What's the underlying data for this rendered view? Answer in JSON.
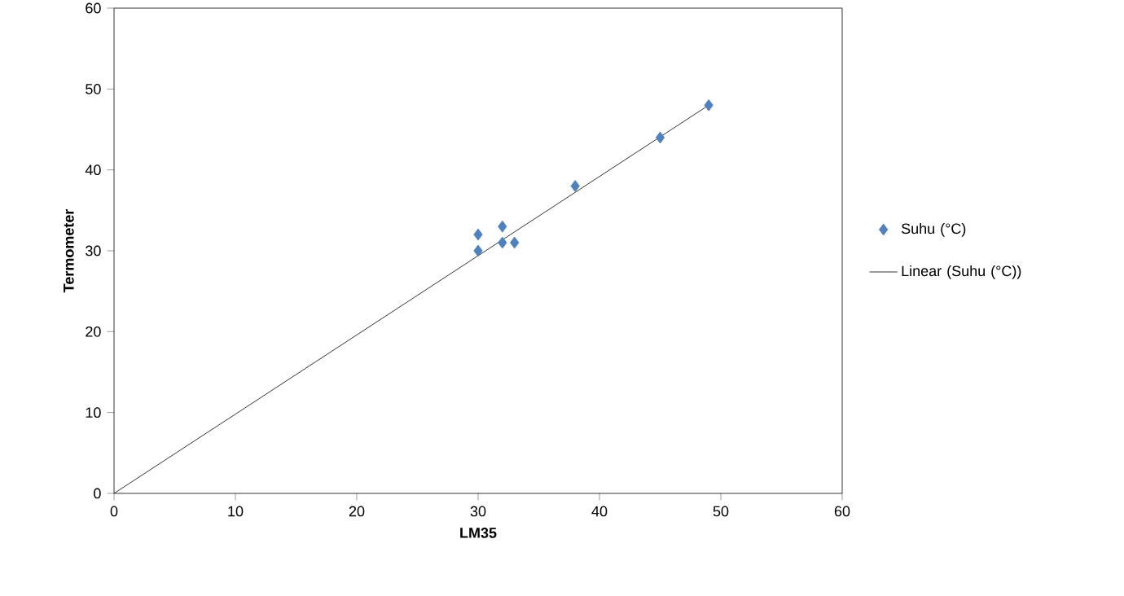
{
  "chart_data": {
    "type": "scatter",
    "xlabel": "LM35",
    "ylabel": "Termometer",
    "xlim": [
      0,
      60
    ],
    "ylim": [
      0,
      60
    ],
    "xticks": [
      0,
      10,
      20,
      30,
      40,
      50,
      60
    ],
    "yticks": [
      0,
      10,
      20,
      30,
      40,
      50,
      60
    ],
    "grid": false,
    "legend": "right",
    "marker": "diamond",
    "series": [
      {
        "name": "Suhu (°C)",
        "color": "#4f81bd",
        "x": [
          49,
          45,
          38,
          30,
          30,
          32,
          33,
          32
        ],
        "values": [
          48,
          44,
          38,
          32,
          30,
          33,
          31,
          31
        ]
      },
      {
        "name": "Linear (Suhu (°C))",
        "type": "line",
        "color": "#000000",
        "marker": "none",
        "line_style": "solid",
        "x": [
          0,
          49
        ],
        "values": [
          0,
          48
        ]
      }
    ]
  }
}
